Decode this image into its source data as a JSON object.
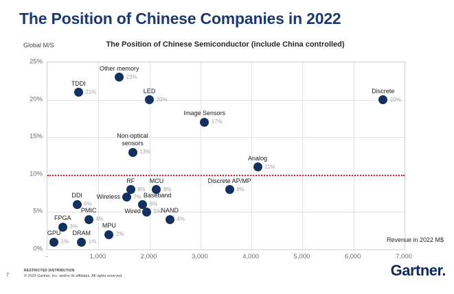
{
  "slide": {
    "title": "The Position of Chinese Companies in 2022",
    "page_number": "7",
    "footer_line1": "RESTRICTED DISTRIBUTION",
    "footer_line2": "© 2022 Gartner, Inc. and/or its affiliates. All rights reserved.",
    "logo_text": "Gartner."
  },
  "colors": {
    "title_blue": "#1c3a6e",
    "point_navy": "#13305f",
    "reference_red": "#e8112d",
    "grid_gray": "#e3e3e3",
    "pct_label_gray": "#a3a3a3"
  },
  "chart_data": {
    "type": "scatter",
    "title": "The Position of Chinese Semiconductor (include China controlled)",
    "xlabel": "Revenue in 2022 M$",
    "ylabel": "Global M/S",
    "xlim": [
      0,
      7000
    ],
    "ylim": [
      0,
      25
    ],
    "grid": true,
    "legend": false,
    "reference_line": {
      "y": 10,
      "style": "dotted",
      "color": "#e8112d"
    },
    "x_ticks": [
      {
        "label": "-",
        "value": 0
      },
      {
        "label": "1,000",
        "value": 1000
      },
      {
        "label": "2,000",
        "value": 2000
      },
      {
        "label": "3,000",
        "value": 3000
      },
      {
        "label": "4,000",
        "value": 4000
      },
      {
        "label": "5,000",
        "value": 5000
      },
      {
        "label": "6,000",
        "value": 6000
      },
      {
        "label": "7,000",
        "value": 7000
      }
    ],
    "y_ticks": [
      {
        "label": "0%",
        "value": 0
      },
      {
        "label": "5%",
        "value": 5
      },
      {
        "label": "10%",
        "value": 10
      },
      {
        "label": "15%",
        "value": 15
      },
      {
        "label": "20%",
        "value": 20
      },
      {
        "label": "25%",
        "value": 25
      }
    ],
    "x_gridlines": [
      1000,
      2000,
      3000,
      4000,
      5000,
      6000
    ],
    "y_gridlines": [
      5,
      10,
      15,
      20
    ],
    "points": [
      {
        "name": "TDDI",
        "revenue_musd": 610,
        "share_pct": 21,
        "value_label": "21%",
        "label_pos": "above"
      },
      {
        "name": "Other memory",
        "revenue_musd": 1410,
        "share_pct": 23,
        "value_label": "23%",
        "label_pos": "above"
      },
      {
        "name": "LED",
        "revenue_musd": 2000,
        "share_pct": 20,
        "value_label": "20%",
        "label_pos": "above"
      },
      {
        "name": "Image Sensors",
        "revenue_musd": 3080,
        "share_pct": 17,
        "value_label": "17%",
        "label_pos": "above"
      },
      {
        "name": "Non-optical sensors",
        "revenue_musd": 1670,
        "share_pct": 13,
        "value_label": "13%",
        "label_pos": "above-2line"
      },
      {
        "name": "Analog",
        "revenue_musd": 4120,
        "share_pct": 11,
        "value_label": "11%",
        "label_pos": "above"
      },
      {
        "name": "Discrete",
        "revenue_musd": 6580,
        "share_pct": 20,
        "value_label": "20%",
        "label_pos": "above"
      },
      {
        "name": "Discrete AP/MP",
        "revenue_musd": 3570,
        "share_pct": 8,
        "value_label": "8%",
        "label_pos": "above"
      },
      {
        "name": "RF",
        "revenue_musd": 1630,
        "share_pct": 8,
        "value_label": "8%",
        "label_pos": "above"
      },
      {
        "name": "MCU",
        "revenue_musd": 2140,
        "share_pct": 8,
        "value_label": "8%",
        "label_pos": "above"
      },
      {
        "name": "Wireless",
        "revenue_musd": 1550,
        "share_pct": 7,
        "value_label": "7%",
        "label_pos": "left"
      },
      {
        "name": "DDI",
        "revenue_musd": 580,
        "share_pct": 6,
        "value_label": "6%",
        "label_pos": "above"
      },
      {
        "name": "Baseband",
        "revenue_musd": 1870,
        "share_pct": 6,
        "value_label": "6%",
        "label_pos": "above-right"
      },
      {
        "name": "Wired",
        "revenue_musd": 1950,
        "share_pct": 5,
        "value_label": "5%",
        "label_pos": "left"
      },
      {
        "name": "PMIC",
        "revenue_musd": 810,
        "share_pct": 4,
        "value_label": "4%",
        "label_pos": "above"
      },
      {
        "name": "NAND",
        "revenue_musd": 2400,
        "share_pct": 4,
        "value_label": "4%",
        "label_pos": "above"
      },
      {
        "name": "FPGA",
        "revenue_musd": 300,
        "share_pct": 3,
        "value_label": "3%",
        "label_pos": "above"
      },
      {
        "name": "MPU",
        "revenue_musd": 1210,
        "share_pct": 2,
        "value_label": "2%",
        "label_pos": "above"
      },
      {
        "name": "GPU",
        "revenue_musd": 130,
        "share_pct": 1,
        "value_label": "1%",
        "label_pos": "above"
      },
      {
        "name": "DRAM",
        "revenue_musd": 670,
        "share_pct": 1,
        "value_label": "1%",
        "label_pos": "above"
      }
    ]
  }
}
